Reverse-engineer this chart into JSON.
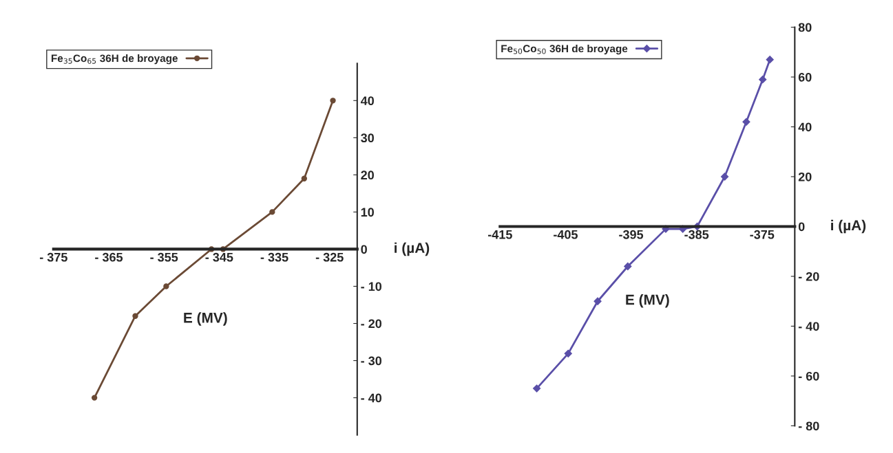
{
  "chart_data": [
    {
      "type": "line",
      "xlabel": "E (MV)",
      "ylabel": "i (µA)",
      "legend": "top left",
      "marker": "circle",
      "line_style": "solid",
      "grid": false,
      "xlim": [
        -375,
        -320
      ],
      "ylim": [
        -50,
        50
      ],
      "xticks": [
        {
          "value": -375,
          "label": "- 375"
        },
        {
          "value": -365,
          "label": "- 365"
        },
        {
          "value": -355,
          "label": "- 355"
        },
        {
          "value": -345,
          "label": "- 345"
        },
        {
          "value": -335,
          "label": "- 335"
        },
        {
          "value": -325,
          "label": "- 325"
        }
      ],
      "yticks": [
        {
          "value": -40,
          "label": "- 40"
        },
        {
          "value": -30,
          "label": "- 30"
        },
        {
          "value": -20,
          "label": "- 20"
        },
        {
          "value": -10,
          "label": "- 10"
        },
        0,
        10,
        20,
        30,
        40
      ],
      "series": [
        {
          "name": "Fe$_{35}$Co$_{65}$ 36H de broyage",
          "color": "#6b4a35",
          "x": [
            -367.6,
            -360.2,
            -354.6,
            -346.4,
            -344.3,
            -335.4,
            -329.6,
            -324.4
          ],
          "values": [
            -40,
            -18,
            -10,
            0,
            0,
            10,
            19,
            40
          ]
        }
      ]
    },
    {
      "type": "line",
      "xlabel": "E (MV)",
      "ylabel": "i (µA)",
      "legend": "top left",
      "marker": "diamond",
      "line_style": "solid",
      "grid": false,
      "xlim": [
        -415,
        -370
      ],
      "ylim": [
        -80,
        80
      ],
      "xticks": [
        {
          "value": -415,
          "label": "-415"
        },
        {
          "value": -405,
          "label": "-405"
        },
        {
          "value": -395,
          "label": "-395"
        },
        {
          "value": -385,
          "label": "-385"
        },
        {
          "value": -375,
          "label": "-375"
        }
      ],
      "yticks": [
        {
          "value": -80,
          "label": "- 80"
        },
        {
          "value": -60,
          "label": "- 60"
        },
        {
          "value": -40,
          "label": "- 40"
        },
        {
          "value": -20,
          "label": "- 20"
        },
        0,
        20,
        40,
        60,
        80
      ],
      "series": [
        {
          "name": "Fe$_{50}$Co$_{50}$ 36H de broyage",
          "color": "#5a4fa8",
          "x": [
            -409.4,
            -404.6,
            -400.1,
            -395.5,
            -389.7,
            -387.1,
            -384.9,
            -380.7,
            -377.4,
            -374.9,
            -373.8
          ],
          "values": [
            -65,
            -51,
            -30,
            -16,
            -1,
            -1,
            0,
            20,
            42,
            59,
            67
          ]
        }
      ]
    }
  ]
}
